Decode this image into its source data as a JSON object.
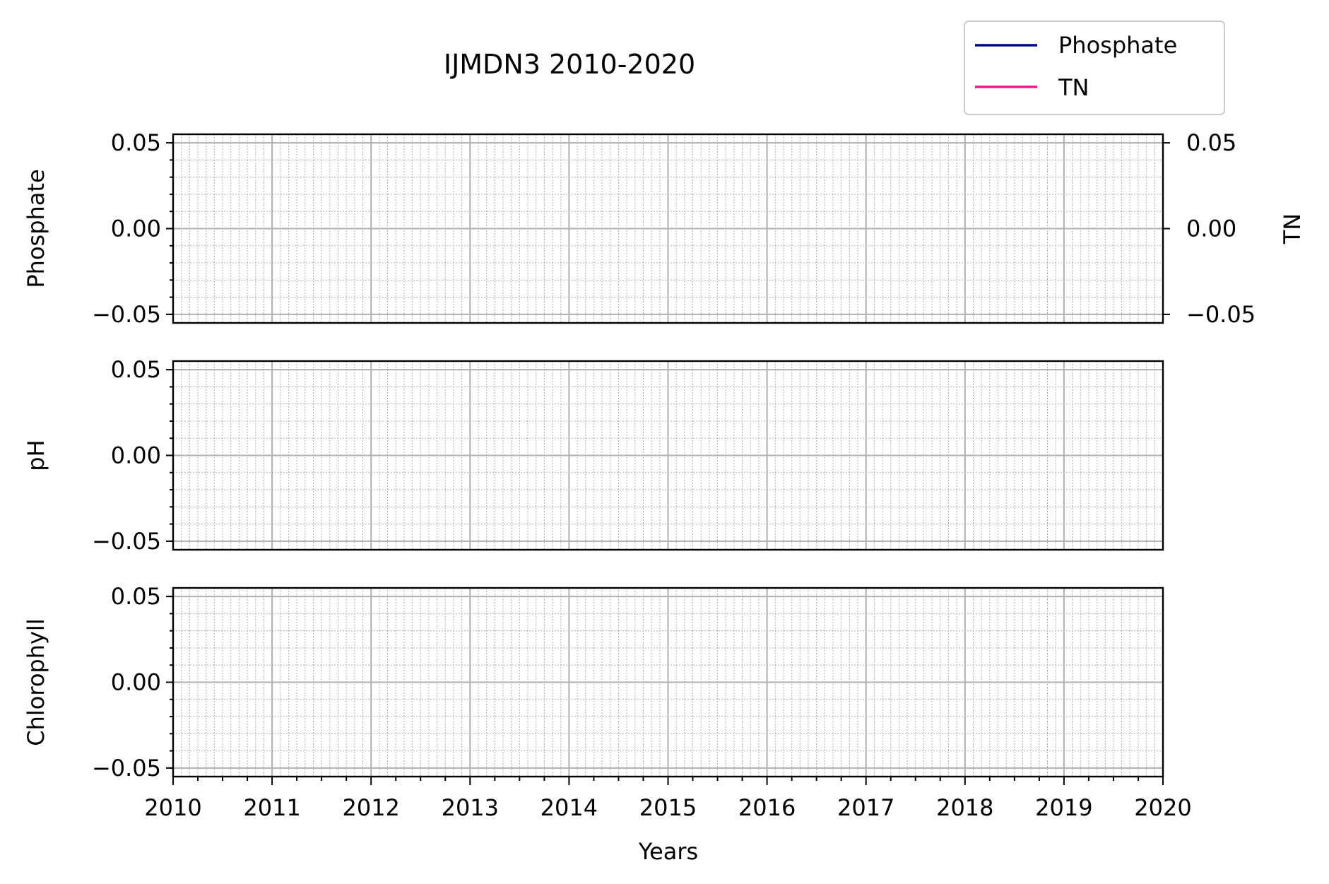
{
  "chart_data": {
    "type": "line",
    "title": "IJMDN3 2010-2020",
    "xlabel": "Years",
    "xlim": [
      2010,
      2020
    ],
    "xticks": [
      2010,
      2011,
      2012,
      2013,
      2014,
      2015,
      2016,
      2017,
      2018,
      2019,
      2020
    ],
    "xtick_labels": [
      "2010",
      "2011",
      "2012",
      "2013",
      "2014",
      "2015",
      "2016",
      "2017",
      "2018",
      "2019",
      "2020"
    ],
    "legend": {
      "placement": "top-right",
      "entries": [
        {
          "label": "Phosphate",
          "color": "#00008b"
        },
        {
          "label": "TN",
          "color": "#ff1493"
        }
      ]
    },
    "panels": [
      {
        "ylabel": "Phosphate",
        "ylim": [
          -0.055,
          0.055
        ],
        "yticks": [
          0.05,
          0.0,
          -0.05
        ],
        "ytick_labels": [
          "0.05",
          "0.00",
          "−0.05"
        ],
        "grid": true,
        "series": [
          {
            "name": "Phosphate",
            "color": "#00008b",
            "values": []
          }
        ],
        "twin_axis": {
          "ylabel": "TN",
          "ylim": [
            -0.055,
            0.055
          ],
          "yticks": [
            0.05,
            0.0,
            -0.05
          ],
          "ytick_labels": [
            "0.05",
            "0.00",
            "−0.05"
          ],
          "series": [
            {
              "name": "TN",
              "color": "#ff1493",
              "values": []
            }
          ]
        }
      },
      {
        "ylabel": "pH",
        "ylim": [
          -0.055,
          0.055
        ],
        "yticks": [
          0.05,
          0.0,
          -0.05
        ],
        "ytick_labels": [
          "0.05",
          "0.00",
          "−0.05"
        ],
        "grid": true,
        "series": []
      },
      {
        "ylabel": "Chlorophyll",
        "ylim": [
          -0.055,
          0.055
        ],
        "yticks": [
          0.05,
          0.0,
          -0.05
        ],
        "ytick_labels": [
          "0.05",
          "0.00",
          "−0.05"
        ],
        "grid": true,
        "series": []
      }
    ]
  }
}
